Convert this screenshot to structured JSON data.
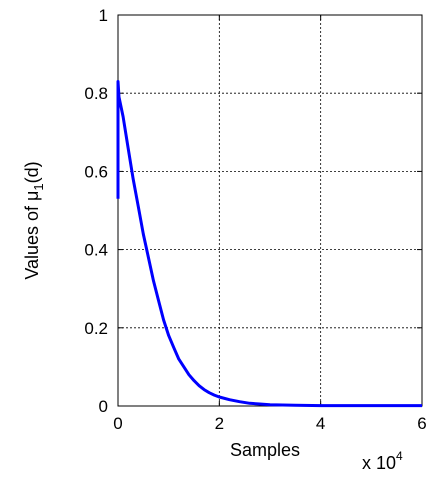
{
  "chart_data": {
    "type": "line",
    "xlabel": "Samples",
    "ylabel_prefix": "Values of μ",
    "ylabel_sub": "1",
    "ylabel_suffix": "(d)",
    "x_multiplier_base": "x 10",
    "x_multiplier_exp": "4",
    "xlim": [
      0,
      6
    ],
    "ylim": [
      0,
      1
    ],
    "xticks": [
      0,
      2,
      4,
      6
    ],
    "yticks": [
      0,
      0.2,
      0.4,
      0.6,
      0.8,
      1
    ],
    "xtick_labels": [
      "0",
      "2",
      "4",
      "6"
    ],
    "ytick_labels": [
      "0",
      "0.2",
      "0.4",
      "0.6",
      "0.8",
      "1"
    ],
    "grid": true,
    "series": [
      {
        "color": "#0000ff",
        "x": [
          0,
          0,
          0.02,
          0.1,
          0.2,
          0.3,
          0.4,
          0.5,
          0.6,
          0.7,
          0.8,
          0.9,
          1.0,
          1.1,
          1.2,
          1.3,
          1.4,
          1.5,
          1.6,
          1.7,
          1.8,
          1.9,
          2.0,
          2.2,
          2.4,
          2.6,
          2.8,
          3.0,
          3.5,
          4.0,
          5.0,
          6.0
        ],
        "y": [
          0.53,
          0.83,
          0.79,
          0.74,
          0.66,
          0.58,
          0.51,
          0.44,
          0.38,
          0.32,
          0.27,
          0.22,
          0.18,
          0.15,
          0.12,
          0.1,
          0.08,
          0.065,
          0.052,
          0.042,
          0.034,
          0.028,
          0.023,
          0.016,
          0.011,
          0.007,
          0.005,
          0.003,
          0.002,
          0.001,
          0.001,
          0.001
        ]
      }
    ]
  }
}
